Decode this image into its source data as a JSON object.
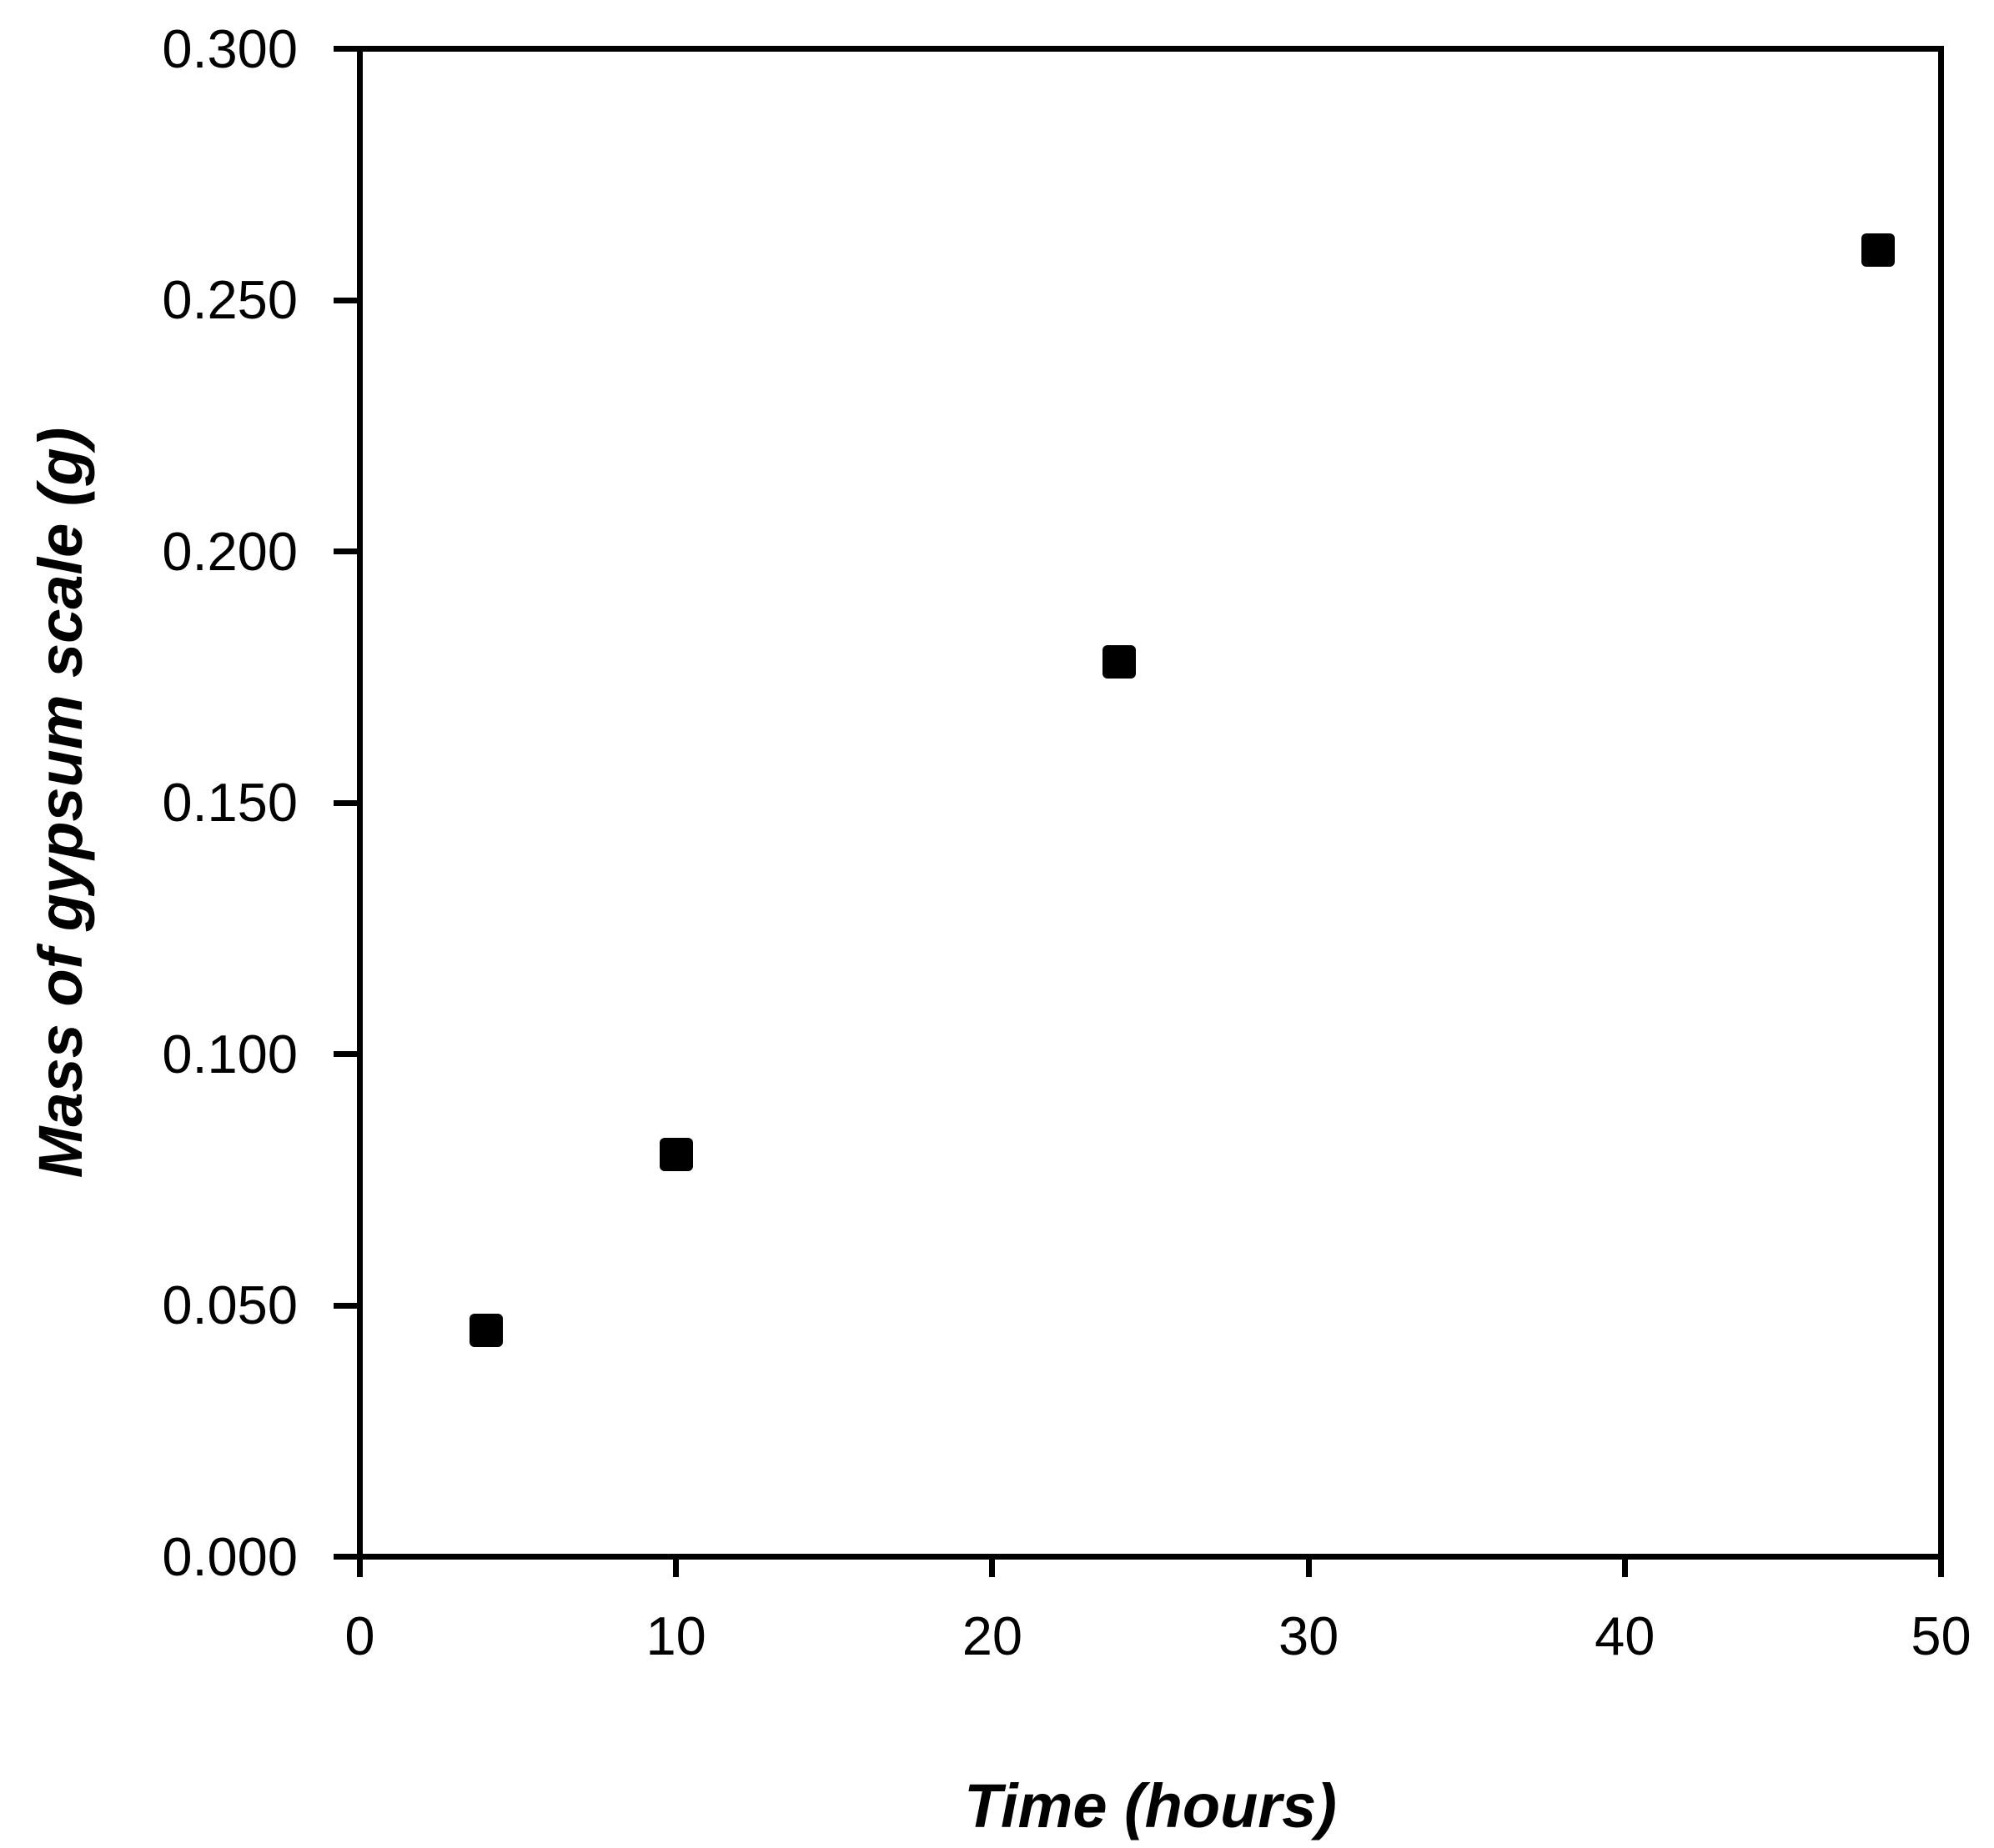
{
  "figure": {
    "background": "#ffffff",
    "axis_color": "#000000"
  },
  "chart_data": {
    "type": "scatter",
    "title": "",
    "xlabel": "Time (hours)",
    "ylabel": "Mass of gypsum scale (g)",
    "xlim": [
      0,
      50
    ],
    "ylim": [
      0.0,
      0.3
    ],
    "grid": false,
    "legend": false,
    "plot_border": "full-box",
    "x_ticks": {
      "values": [
        0,
        10,
        20,
        30,
        40,
        50
      ],
      "labels": [
        "0",
        "10",
        "20",
        "30",
        "40",
        "50"
      ]
    },
    "y_ticks": {
      "values": [
        0.0,
        0.05,
        0.1,
        0.15,
        0.2,
        0.25,
        0.3
      ],
      "labels": [
        "0.000",
        "0.050",
        "0.100",
        "0.150",
        "0.200",
        "0.250",
        "0.300"
      ]
    },
    "series": [
      {
        "name": "Mass of gypsum scale",
        "marker": "square",
        "marker_color": "#000000",
        "points": [
          {
            "x": 4,
            "y": 0.045
          },
          {
            "x": 10,
            "y": 0.08
          },
          {
            "x": 24,
            "y": 0.178
          },
          {
            "x": 48,
            "y": 0.26
          }
        ]
      }
    ]
  }
}
